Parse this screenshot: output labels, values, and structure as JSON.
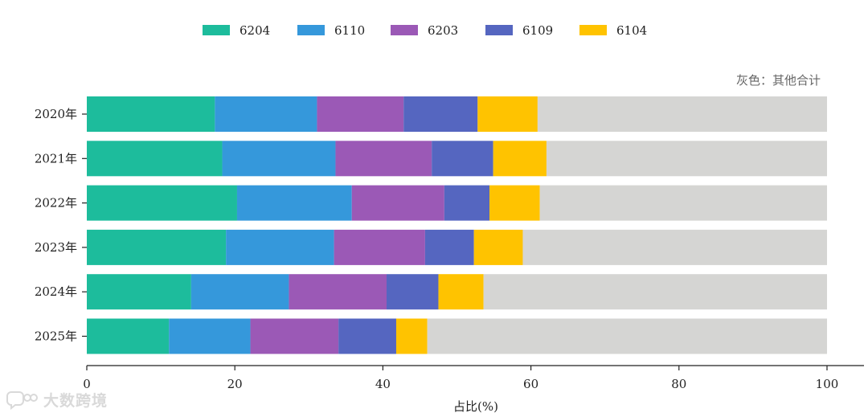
{
  "chart_data": {
    "type": "bar",
    "orientation": "horizontal",
    "stacked": true,
    "title": "",
    "categories": [
      "2020年",
      "2021年",
      "2022年",
      "2023年",
      "2024年",
      "2025年"
    ],
    "series": [
      {
        "name": "6204",
        "color": "#1dbc9c",
        "values": [
          17.3,
          18.3,
          20.3,
          18.8,
          14.1,
          11.1
        ]
      },
      {
        "name": "6110",
        "color": "#3598db",
        "values": [
          13.8,
          15.3,
          15.5,
          14.6,
          13.2,
          11.0
        ]
      },
      {
        "name": "6203",
        "color": "#9b59b6",
        "values": [
          11.7,
          13.0,
          12.5,
          12.3,
          13.2,
          11.9
        ]
      },
      {
        "name": "6109",
        "color": "#5566c0",
        "values": [
          10.0,
          8.3,
          6.1,
          6.6,
          7.0,
          7.8
        ]
      },
      {
        "name": "6104",
        "color": "#ffc300",
        "values": [
          8.1,
          7.2,
          6.8,
          6.6,
          6.1,
          4.2
        ]
      }
    ],
    "remainder": {
      "color": "#d5d5d3",
      "values": [
        39.1,
        37.9,
        38.8,
        41.1,
        46.4,
        54.0
      ]
    },
    "xlabel": "占比(%)",
    "ylabel": "",
    "xlim": [
      0,
      100
    ],
    "xticks": [
      0,
      20,
      40,
      60,
      80,
      100
    ],
    "legend_position": "top-center",
    "note": "灰色：其他合计",
    "grid": false
  },
  "watermark": {
    "text": "大数跨境",
    "icon": "chat-bubble-icon"
  }
}
